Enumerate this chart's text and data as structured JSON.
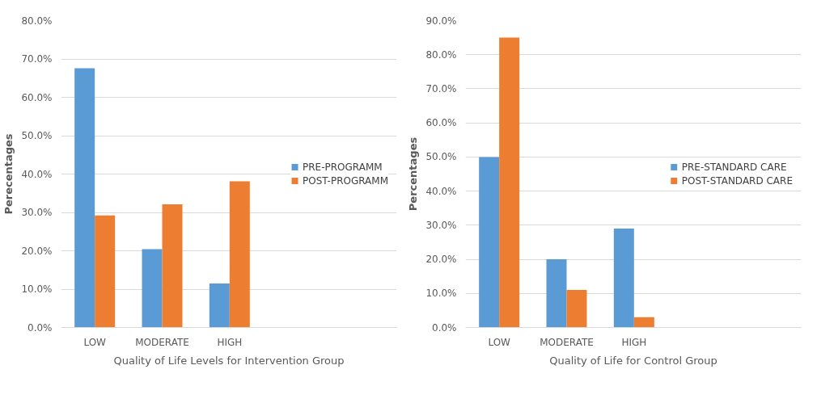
{
  "chart_data": [
    {
      "type": "bar",
      "xlabel": "Quality of Life Levels for Intervention Group",
      "ylabel": "Perecentages",
      "categories": [
        "LOW",
        "MODERATE",
        "HIGH"
      ],
      "series": [
        {
          "name": "PRE-PROGRAMM",
          "color": "#5b9bd5",
          "values": [
            67.6,
            20.4,
            11.5
          ]
        },
        {
          "name": "POST-PROGRAMM",
          "color": "#ed7d31",
          "values": [
            29.2,
            32.1,
            38.1
          ]
        }
      ],
      "ylim": [
        0,
        80
      ],
      "yticks": [
        {
          "value": 0,
          "label": "0.0%"
        },
        {
          "value": 10,
          "label": "10.0%"
        },
        {
          "value": 20,
          "label": "20.0%"
        },
        {
          "value": 30,
          "label": "30.0%"
        },
        {
          "value": 40,
          "label": "40.0%"
        },
        {
          "value": 50,
          "label": "50.0%"
        },
        {
          "value": 60,
          "label": "60.0%"
        },
        {
          "value": 70,
          "label": "70.0%"
        },
        {
          "value": 80,
          "label": "80.0%"
        }
      ],
      "grid": "y",
      "legend": "right"
    },
    {
      "type": "bar",
      "xlabel": "Quality of Life for Control Group",
      "ylabel": "Percentages",
      "categories": [
        "LOW",
        "MODERATE",
        "HIGH"
      ],
      "series": [
        {
          "name": "PRE-STANDARD CARE",
          "color": "#5b9bd5",
          "values": [
            50,
            20,
            29
          ]
        },
        {
          "name": "POST-STANDARD CARE",
          "color": "#ed7d31",
          "values": [
            85,
            11,
            3
          ]
        }
      ],
      "ylim": [
        0,
        90
      ],
      "yticks": [
        {
          "value": 0,
          "label": "0.0%"
        },
        {
          "value": 10,
          "label": "10.0%"
        },
        {
          "value": 20,
          "label": "20.0%"
        },
        {
          "value": 30,
          "label": "30.0%"
        },
        {
          "value": 40,
          "label": "40.0%"
        },
        {
          "value": 50,
          "label": "50.0%"
        },
        {
          "value": 60,
          "label": "60.0%"
        },
        {
          "value": 70,
          "label": "70.0%"
        },
        {
          "value": 80,
          "label": "80.0%"
        },
        {
          "value": 90,
          "label": "90.0%"
        }
      ],
      "grid": "y",
      "legend": "right"
    }
  ]
}
